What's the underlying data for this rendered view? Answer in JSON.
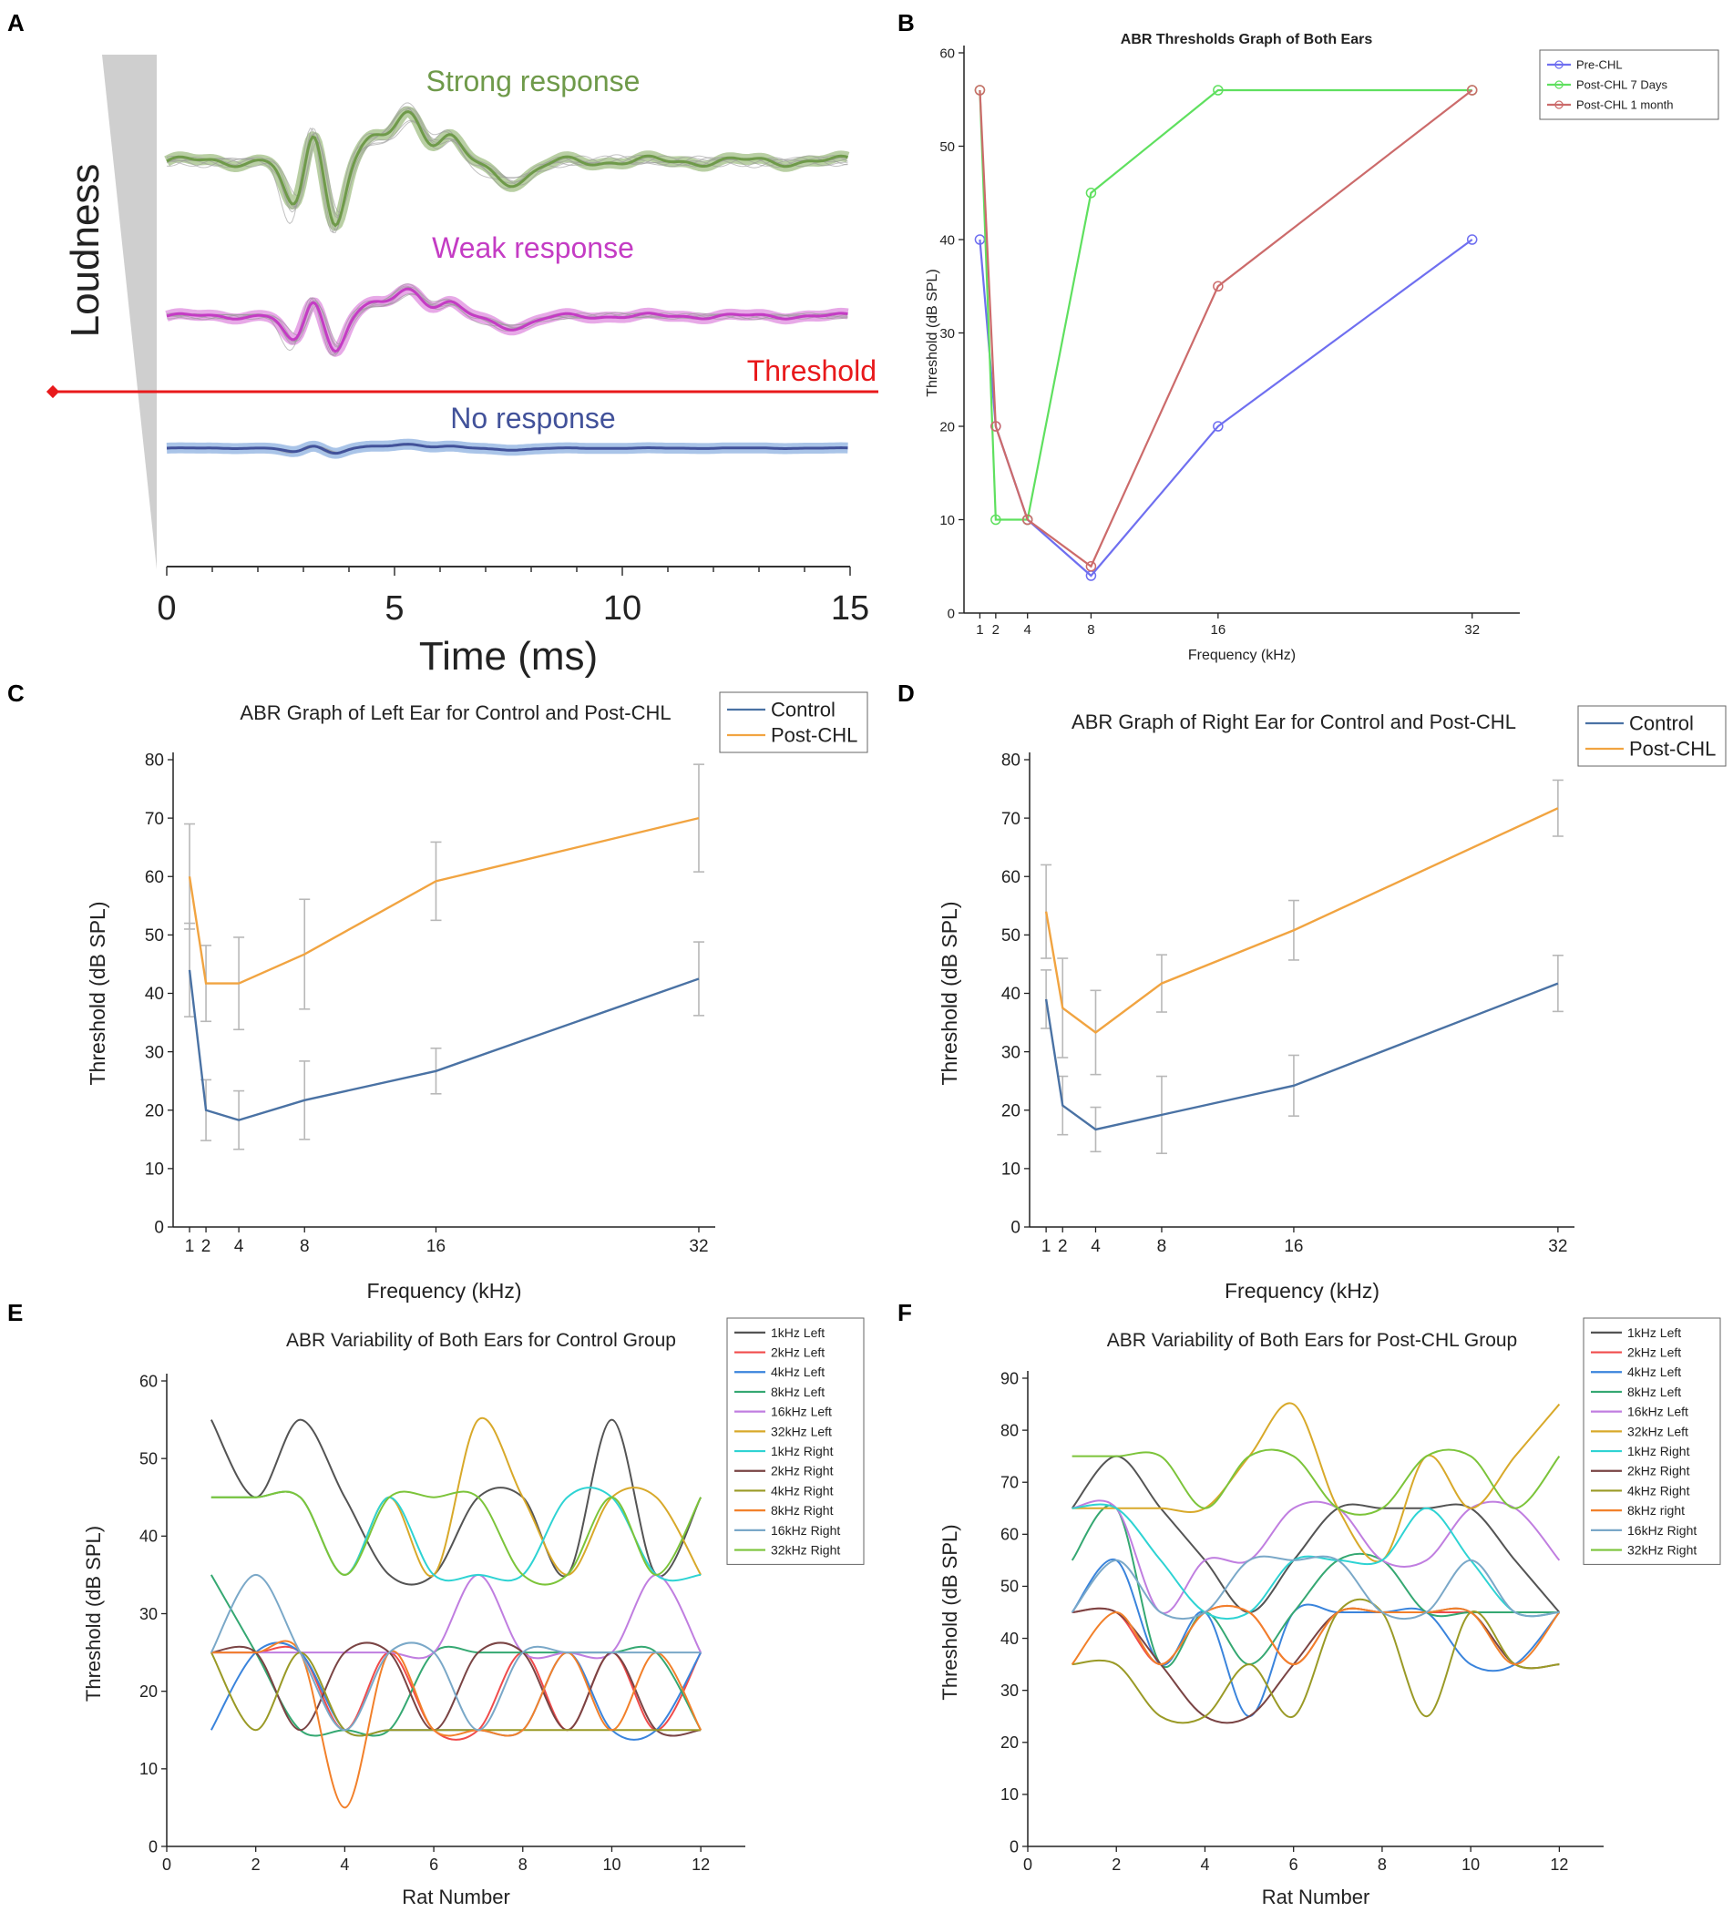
{
  "panel_labels": [
    "A",
    "B",
    "C",
    "D",
    "E",
    "F"
  ],
  "chart_data": [
    {
      "id": "A",
      "type": "line",
      "xlabel": "Time (ms)",
      "xticks": [
        0,
        5,
        10,
        15
      ],
      "xlim": [
        0,
        15
      ],
      "side_label": "Loudness",
      "threshold_label": "Threshold",
      "traces": [
        {
          "name": "Strong response",
          "color": "#6f9a4a",
          "band": "#b9cfa4"
        },
        {
          "name": "Weak response",
          "color": "#c43cc4",
          "band": "#e7a9e7"
        },
        {
          "name": "No response",
          "color": "#42529a",
          "band": "#a9c4e8"
        }
      ],
      "colors": {
        "threshold": "#e8191b",
        "wedge": "#cfcfcf"
      }
    },
    {
      "id": "B",
      "type": "line",
      "title": "ABR Thresholds Graph of Both Ears",
      "xlabel": "Frequency (kHz)",
      "ylabel": "Threshold (dB SPL)",
      "x": [
        1,
        2,
        4,
        8,
        16,
        32
      ],
      "xticks": [
        1,
        2,
        4,
        8,
        16,
        32
      ],
      "xlim": [
        0,
        35
      ],
      "ylim": [
        0,
        60
      ],
      "yticks": [
        0,
        10,
        20,
        30,
        40,
        50,
        60
      ],
      "markers": true,
      "legend_position": "top-right",
      "series": [
        {
          "name": "Pre-CHL",
          "color": "#6f6ff0",
          "values": [
            40,
            20,
            10,
            4,
            20,
            40
          ]
        },
        {
          "name": "Post-CHL 7 Days",
          "color": "#5fe05f",
          "values": [
            56,
            10,
            10,
            45,
            56,
            56
          ]
        },
        {
          "name": "Post-CHL 1 month",
          "color": "#cc6b6b",
          "values": [
            56,
            20,
            10,
            5,
            35,
            56
          ]
        }
      ]
    },
    {
      "id": "C",
      "type": "line",
      "title": "ABR Graph of Left Ear for Control and Post-CHL",
      "xlabel": "Frequency (kHz)",
      "ylabel": "Threshold (dB SPL)",
      "x": [
        1,
        2,
        4,
        8,
        16,
        32
      ],
      "xticks": [
        1,
        2,
        4,
        8,
        16,
        32
      ],
      "xlim": [
        0,
        33
      ],
      "ylim": [
        0,
        80
      ],
      "yticks": [
        0,
        10,
        20,
        30,
        40,
        50,
        60,
        70,
        80
      ],
      "legend_position": "top-right",
      "series": [
        {
          "name": "Control",
          "color": "#4a72a4",
          "values": [
            44,
            20,
            18.3,
            21.7,
            26.7,
            42.5
          ],
          "errors": [
            8,
            5.2,
            5,
            6.7,
            3.9,
            6.3
          ]
        },
        {
          "name": "Post-CHL",
          "color": "#f1a441",
          "values": [
            60,
            41.7,
            41.7,
            46.7,
            59.2,
            70
          ],
          "errors": [
            9,
            6.5,
            7.9,
            9.4,
            6.7,
            9.2
          ]
        }
      ]
    },
    {
      "id": "D",
      "type": "line",
      "title": "ABR Graph of Right Ear for Control and Post-CHL",
      "xlabel": "Frequency (kHz)",
      "ylabel": "Threshold (dB SPL)",
      "x": [
        1,
        2,
        4,
        8,
        16,
        32
      ],
      "xticks": [
        1,
        2,
        4,
        8,
        16,
        32
      ],
      "xlim": [
        0,
        33
      ],
      "ylim": [
        0,
        80
      ],
      "yticks": [
        0,
        10,
        20,
        30,
        40,
        50,
        60,
        70,
        80
      ],
      "legend_position": "top-right",
      "series": [
        {
          "name": "Control",
          "color": "#4a72a4",
          "values": [
            39,
            20.8,
            16.7,
            19.2,
            24.2,
            41.7
          ],
          "errors": [
            5,
            5,
            3.8,
            6.6,
            5.2,
            4.8
          ]
        },
        {
          "name": "Post-CHL",
          "color": "#f1a441",
          "values": [
            54,
            37.5,
            33.3,
            41.7,
            50.8,
            71.7
          ],
          "errors": [
            8,
            8.5,
            7.2,
            4.9,
            5.1,
            4.8
          ]
        }
      ]
    },
    {
      "id": "E",
      "type": "line",
      "smooth": true,
      "title": "ABR Variability of Both Ears for Control Group",
      "xlabel": "Rat Number",
      "ylabel": "Threshold (dB SPL)",
      "x": [
        1,
        2,
        3,
        4,
        5,
        6,
        7,
        8,
        9,
        10,
        11,
        12
      ],
      "xlim": [
        0,
        13
      ],
      "xticks": [
        0,
        2,
        4,
        6,
        8,
        10,
        12
      ],
      "ylim": [
        0,
        60
      ],
      "yticks": [
        0,
        10,
        20,
        30,
        40,
        50,
        60
      ],
      "legend_position": "top-right",
      "series": [
        {
          "name": "1kHz Left",
          "color": "#545454",
          "values": [
            55,
            45,
            55,
            45,
            35,
            35,
            45,
            45,
            35,
            55,
            35,
            45
          ]
        },
        {
          "name": "2kHz Left",
          "color": "#f04b4b",
          "values": [
            25,
            25,
            25,
            15,
            25,
            15,
            15,
            25,
            15,
            25,
            15,
            25
          ]
        },
        {
          "name": "4kHz Left",
          "color": "#3a84dc",
          "values": [
            15,
            25,
            25,
            15,
            15,
            15,
            15,
            15,
            25,
            15,
            15,
            25
          ]
        },
        {
          "name": "8kHz Left",
          "color": "#35a872",
          "values": [
            35,
            25,
            15,
            15,
            15,
            25,
            25,
            25,
            25,
            25,
            25,
            15
          ]
        },
        {
          "name": "16kHz Left",
          "color": "#c07ee0",
          "values": [
            25,
            25,
            25,
            25,
            25,
            25,
            35,
            25,
            25,
            25,
            35,
            25
          ]
        },
        {
          "name": "32kHz Left",
          "color": "#d8a92a",
          "values": [
            45,
            45,
            45,
            35,
            45,
            35,
            55,
            45,
            35,
            45,
            45,
            35
          ]
        },
        {
          "name": "1kHz Right",
          "color": "#2ed3d3",
          "values": [
            45,
            45,
            45,
            35,
            45,
            35,
            35,
            35,
            45,
            45,
            35,
            35
          ]
        },
        {
          "name": "2kHz Right",
          "color": "#7a4444",
          "values": [
            25,
            25,
            15,
            25,
            25,
            15,
            25,
            25,
            15,
            25,
            15,
            15
          ]
        },
        {
          "name": "4kHz Right",
          "color": "#9a9a26",
          "values": [
            25,
            15,
            25,
            15,
            15,
            15,
            15,
            15,
            15,
            15,
            15,
            15
          ]
        },
        {
          "name": "8kHz Right",
          "color": "#f2802a",
          "values": [
            25,
            25,
            25,
            5,
            25,
            15,
            15,
            15,
            25,
            15,
            25,
            15
          ]
        },
        {
          "name": "16kHz Right",
          "color": "#7aa8c8",
          "values": [
            25,
            35,
            25,
            15,
            25,
            25,
            15,
            25,
            25,
            25,
            25,
            25
          ]
        },
        {
          "name": "32kHz Right",
          "color": "#7cc43a",
          "values": [
            45,
            45,
            45,
            35,
            45,
            45,
            45,
            35,
            35,
            45,
            35,
            45
          ]
        }
      ]
    },
    {
      "id": "F",
      "type": "line",
      "smooth": true,
      "title": "ABR Variability of Both Ears for Post-CHL Group",
      "xlabel": "Rat Number",
      "ylabel": "Threshold (dB SPL)",
      "x": [
        1,
        2,
        3,
        4,
        5,
        6,
        7,
        8,
        9,
        10,
        11,
        12
      ],
      "xlim": [
        0,
        13
      ],
      "xticks": [
        0,
        2,
        4,
        6,
        8,
        10,
        12
      ],
      "ylim": [
        0,
        90
      ],
      "yticks": [
        0,
        10,
        20,
        30,
        40,
        50,
        60,
        70,
        80,
        90
      ],
      "legend_position": "top-right",
      "series": [
        {
          "name": "1kHz Left",
          "color": "#545454",
          "values": [
            65,
            75,
            65,
            55,
            45,
            55,
            65,
            65,
            65,
            65,
            55,
            45
          ]
        },
        {
          "name": "2kHz Left",
          "color": "#f04b4b",
          "values": [
            45,
            45,
            35,
            45,
            45,
            35,
            45,
            45,
            45,
            45,
            45,
            45
          ]
        },
        {
          "name": "4kHz Left",
          "color": "#3a84dc",
          "values": [
            45,
            55,
            35,
            45,
            25,
            45,
            45,
            45,
            45,
            35,
            35,
            45
          ]
        },
        {
          "name": "8kHz Left",
          "color": "#35a872",
          "values": [
            55,
            65,
            35,
            45,
            35,
            45,
            55,
            55,
            45,
            45,
            45,
            45
          ]
        },
        {
          "name": "16kHz Left",
          "color": "#c07ee0",
          "values": [
            65,
            65,
            45,
            55,
            55,
            65,
            65,
            55,
            55,
            65,
            65,
            55
          ]
        },
        {
          "name": "32kHz Left",
          "color": "#d8a92a",
          "values": [
            65,
            65,
            65,
            65,
            75,
            85,
            65,
            55,
            75,
            65,
            75,
            85
          ]
        },
        {
          "name": "1kHz Right",
          "color": "#2ed3d3",
          "values": [
            65,
            65,
            55,
            45,
            45,
            55,
            55,
            55,
            65,
            55,
            45,
            45
          ]
        },
        {
          "name": "2kHz Right",
          "color": "#7a4444",
          "values": [
            45,
            45,
            35,
            25,
            25,
            35,
            45,
            45,
            45,
            45,
            35,
            35
          ]
        },
        {
          "name": "4kHz Right",
          "color": "#9a9a26",
          "values": [
            35,
            35,
            25,
            25,
            35,
            25,
            45,
            45,
            25,
            45,
            35,
            35
          ]
        },
        {
          "name": "8kHz right",
          "color": "#f2802a",
          "values": [
            35,
            45,
            35,
            45,
            45,
            35,
            45,
            45,
            45,
            45,
            35,
            45
          ]
        },
        {
          "name": "16kHz Right",
          "color": "#7aa8c8",
          "values": [
            45,
            55,
            45,
            45,
            55,
            55,
            55,
            45,
            45,
            55,
            45,
            45
          ]
        },
        {
          "name": "32kHz Right",
          "color": "#7cc43a",
          "values": [
            75,
            75,
            75,
            65,
            75,
            75,
            65,
            65,
            75,
            75,
            65,
            75
          ]
        }
      ]
    }
  ]
}
